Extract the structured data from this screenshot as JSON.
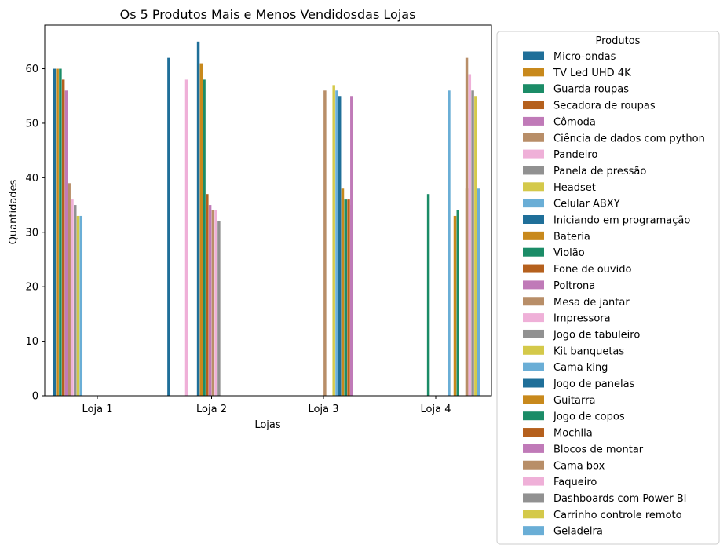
{
  "chart_data": {
    "type": "bar",
    "title": "Os 5 Produtos Mais e Menos Vendidosdas Lojas",
    "xlabel": "Lojas",
    "ylabel": "Quantidades",
    "ylim": [
      0,
      68
    ],
    "yticks": [
      0,
      10,
      20,
      30,
      40,
      50,
      60
    ],
    "grid": false,
    "legend_title": "Produtos",
    "legend_position": "outside-right",
    "categories": [
      "Loja 1",
      "Loja 2",
      "Loja 3",
      "Loja 4"
    ],
    "palette": [
      "#1f6f99",
      "#c8891c",
      "#1b8c67",
      "#b5601d",
      "#c07ab8",
      "#b88e68",
      "#efb0d8",
      "#919191",
      "#d4c94a",
      "#6aaed6"
    ],
    "series": [
      {
        "name": "Micro-ondas",
        "values": [
          60,
          62,
          null,
          null
        ]
      },
      {
        "name": "TV Led UHD 4K",
        "values": [
          60,
          null,
          null,
          null
        ]
      },
      {
        "name": "Guarda roupas",
        "values": [
          60,
          null,
          null,
          null
        ]
      },
      {
        "name": "Secadora de roupas",
        "values": [
          58,
          null,
          null,
          null
        ]
      },
      {
        "name": "Cômoda",
        "values": [
          56,
          null,
          null,
          null
        ]
      },
      {
        "name": "Ciência de dados com python",
        "values": [
          39,
          null,
          null,
          null
        ]
      },
      {
        "name": "Pandeiro",
        "values": [
          36,
          58,
          null,
          null
        ]
      },
      {
        "name": "Panela de pressão",
        "values": [
          35,
          null,
          null,
          null
        ]
      },
      {
        "name": "Headset",
        "values": [
          33,
          null,
          null,
          null
        ]
      },
      {
        "name": "Celular ABXY",
        "values": [
          33,
          null,
          null,
          null
        ]
      },
      {
        "name": "Iniciando em programação",
        "values": [
          null,
          65,
          null,
          null
        ]
      },
      {
        "name": "Bateria",
        "values": [
          null,
          61,
          null,
          null
        ]
      },
      {
        "name": "Violão",
        "values": [
          null,
          58,
          null,
          null
        ]
      },
      {
        "name": "Fone de ouvido",
        "values": [
          null,
          37,
          null,
          null
        ]
      },
      {
        "name": "Poltrona",
        "values": [
          null,
          35,
          null,
          null
        ]
      },
      {
        "name": "Mesa de jantar",
        "values": [
          null,
          34,
          null,
          null
        ]
      },
      {
        "name": "Impressora",
        "values": [
          null,
          34,
          null,
          null
        ]
      },
      {
        "name": "Jogo de tabuleiro",
        "values": [
          null,
          32,
          null,
          null
        ]
      },
      {
        "name": "Kit banquetas",
        "values": [
          null,
          null,
          null,
          null
        ]
      },
      {
        "name": "Cama king",
        "values": [
          null,
          null,
          null,
          null
        ]
      },
      {
        "name": "Jogo de panelas",
        "values": [
          null,
          null,
          36,
          null
        ]
      },
      {
        "name": "Guitarra",
        "values": [
          null,
          null,
          null,
          null
        ]
      },
      {
        "name": "Jogo de copos",
        "values": [
          null,
          null,
          null,
          34
        ]
      },
      {
        "name": "Mochila",
        "values": [
          null,
          null,
          null,
          null
        ]
      },
      {
        "name": "Blocos de montar",
        "values": [
          null,
          null,
          55,
          null
        ]
      },
      {
        "name": "Cama box",
        "values": [
          null,
          null,
          null,
          38
        ]
      },
      {
        "name": "Faqueiro",
        "values": [
          null,
          null,
          null,
          null
        ]
      },
      {
        "name": "Dashboards com Power BI",
        "values": [
          null,
          null,
          null,
          null
        ]
      },
      {
        "name": "Carrinho controle remoto",
        "values": [
          null,
          null,
          null,
          null
        ]
      },
      {
        "name": "Geladeira",
        "values": [
          null,
          null,
          null,
          null
        ]
      }
    ],
    "extra_bars": [
      {
        "store": "Loja 3",
        "slot": 15,
        "value": 56
      },
      {
        "store": "Loja 3",
        "slot": 18,
        "value": 57
      },
      {
        "store": "Loja 3",
        "slot": 19,
        "value": 56
      },
      {
        "store": "Loja 3",
        "slot": 20,
        "value": 55
      },
      {
        "store": "Loja 3",
        "slot": 21,
        "value": 38
      },
      {
        "store": "Loja 3",
        "slot": 22,
        "value": 36
      },
      {
        "store": "Loja 3",
        "slot": 23,
        "value": 36
      },
      {
        "store": "Loja 3",
        "slot": 24,
        "value": 35
      },
      {
        "store": "Loja 4",
        "slot": 12,
        "value": 37
      },
      {
        "store": "Loja 4",
        "slot": 21,
        "value": 33
      },
      {
        "store": "Loja 4",
        "slot": 19,
        "value": 56
      },
      {
        "store": "Loja 4",
        "slot": 25,
        "value": 62
      },
      {
        "store": "Loja 4",
        "slot": 26,
        "value": 59
      },
      {
        "store": "Loja 4",
        "slot": 27,
        "value": 56
      },
      {
        "store": "Loja 4",
        "slot": 28,
        "value": 55
      },
      {
        "store": "Loja 4",
        "slot": 29,
        "value": 38
      }
    ]
  }
}
